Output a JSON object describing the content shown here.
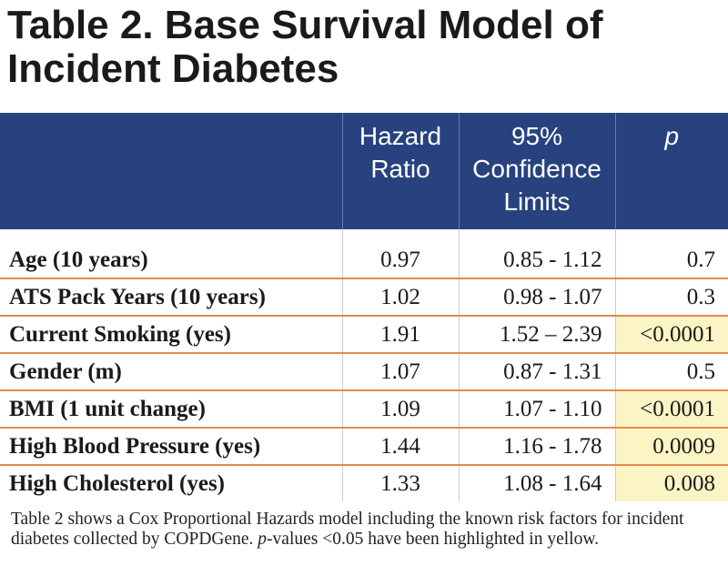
{
  "title": "Table 2. Base Survival Model of Incident Diabetes",
  "table": {
    "headers": {
      "variable": "",
      "hr": [
        "Hazard",
        "Ratio"
      ],
      "ci": [
        "95%",
        "Confidence",
        "Limits"
      ],
      "p": "p"
    },
    "rows": [
      {
        "label": "Age (10 years)",
        "hr": "0.97",
        "ci": "0.85 - 1.12",
        "p": "0.7",
        "highlight": false
      },
      {
        "label": "ATS Pack Years (10 years)",
        "hr": "1.02",
        "ci": "0.98 - 1.07",
        "p": "0.3",
        "highlight": false
      },
      {
        "label": "Current Smoking (yes)",
        "hr": "1.91",
        "ci": "1.52 – 2.39",
        "p": "<0.0001",
        "highlight": true
      },
      {
        "label": "Gender (m)",
        "hr": "1.07",
        "ci": "0.87 - 1.31",
        "p": "0.5",
        "highlight": false
      },
      {
        "label": "BMI (1 unit change)",
        "hr": "1.09",
        "ci": "1.07 - 1.10",
        "p": "<0.0001",
        "highlight": true
      },
      {
        "label": "High Blood Pressure (yes)",
        "hr": "1.44",
        "ci": "1.16 - 1.78",
        "p": "0.0009",
        "highlight": true
      },
      {
        "label": "High Cholesterol (yes)",
        "hr": "1.33",
        "ci": "1.08 - 1.64",
        "p": "0.008",
        "highlight": true
      }
    ]
  },
  "caption": {
    "part1": "Table 2 shows a Cox Proportional Hazards model including the known risk factors for incident diabetes collected by COPDGene. ",
    "p_italic": "p",
    "part2": "-values <0.05 have been highlighted in yellow."
  },
  "colors": {
    "header_bg": "#27427f",
    "row_separator": "#e38a4a",
    "highlight": "#fbf5c6"
  }
}
